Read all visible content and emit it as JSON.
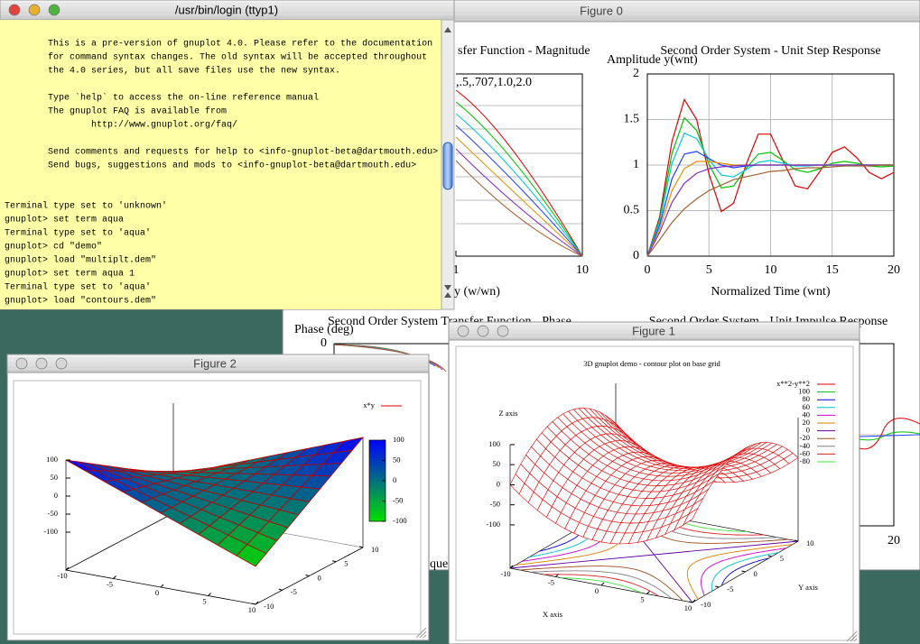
{
  "terminal": {
    "title": "/usr/bin/login  (ttyp1)",
    "lines": [
      "        This is a pre-version of gnuplot 4.0. Please refer to the documentation",
      "        for command syntax changes. The old syntax will be accepted throughout",
      "        the 4.0 series, but all save files use the new syntax.",
      "        Type `help` to access the on-line reference manual",
      "        The gnuplot FAQ is available from",
      "                http://www.gnuplot.org/faq/",
      "        Send comments and requests for help to <info-gnuplot-beta@dartmouth.edu>",
      "        Send bugs, suggestions and mods to <info-gnuplot-beta@dartmouth.edu>",
      "Terminal type set to 'unknown'",
      "gnuplot> set term aqua",
      "Terminal type set to 'aqua'",
      "gnuplot> cd \"demo\"",
      "gnuplot> load \"multiplt.dem\"",
      "gnuplot> set term aqua 1",
      "Terminal type set to 'aqua'",
      "gnuplot> load \"contours.dem\""
    ]
  },
  "figure0": {
    "title": "Figure 0",
    "magnitude": {
      "title": "sfer Function - Magnitude",
      "annotation": ",.5,.707,1.0,2.0",
      "xticks": [
        1,
        10
      ],
      "xlabel": "y (w/wn)"
    },
    "phase": {
      "title": "Second Order System Transfer Function - Phase",
      "ylabel": "Phase (deg)",
      "yticks": [
        0
      ],
      "xlabel": "quer"
    },
    "impulse": {
      "title": "Second Order System - Unit Impulse Response",
      "xticks": [
        20
      ]
    }
  },
  "chart_data": {
    "type": "line",
    "title": "Second Order System - Unit Step Response",
    "ylabel": "Amplitude y(wnt)",
    "xlabel": "Normalized Time (wnt)",
    "x": [
      0,
      1,
      2,
      3,
      4,
      5,
      6,
      7,
      8,
      9,
      10,
      11,
      12,
      13,
      14,
      15,
      16,
      17,
      18,
      19,
      20
    ],
    "series": [
      {
        "color": "#e00000",
        "values": [
          0,
          0.43,
          1.26,
          1.72,
          1.5,
          0.9,
          0.49,
          0.58,
          1,
          1.34,
          1.34,
          1.05,
          0.77,
          0.74,
          0.93,
          1.14,
          1.2,
          1.08,
          0.92,
          0.85,
          0.92
        ]
      },
      {
        "color": "#00c000",
        "values": [
          0,
          0.4,
          1.13,
          1.52,
          1.38,
          1.01,
          0.75,
          0.77,
          0.96,
          1.12,
          1.14,
          1.05,
          0.95,
          0.92,
          0.96,
          1.02,
          1.04,
          1.02,
          0.99,
          0.98,
          0.99
        ]
      },
      {
        "color": "#00c8e0",
        "values": [
          0,
          0.38,
          1.02,
          1.35,
          1.29,
          1.06,
          0.89,
          0.87,
          0.95,
          1.03,
          1.05,
          1.02,
          0.99,
          0.99,
          1,
          1,
          1,
          1,
          1,
          1,
          1
        ]
      },
      {
        "color": "#2040ff",
        "values": [
          0,
          0.34,
          0.85,
          1.12,
          1.15,
          1.07,
          1,
          0.97,
          0.99,
          1,
          1,
          1,
          1,
          1,
          1,
          1,
          1,
          1,
          1,
          1,
          1
        ]
      },
      {
        "color": "#e09000",
        "values": [
          0,
          0.3,
          0.72,
          0.96,
          1.04,
          1.04,
          1.02,
          1,
          1,
          1,
          1,
          1,
          1,
          1,
          1,
          1,
          1,
          1,
          1,
          1,
          1
        ]
      },
      {
        "color": "#8030c0",
        "values": [
          0,
          0.26,
          0.59,
          0.8,
          0.91,
          0.96,
          0.98,
          0.99,
          1,
          1,
          1,
          1,
          1,
          1,
          1,
          1,
          1,
          1,
          1,
          1,
          1
        ]
      },
      {
        "color": "#a06030",
        "values": [
          0,
          0.18,
          0.37,
          0.52,
          0.63,
          0.72,
          0.78,
          0.84,
          0.87,
          0.9,
          0.93,
          0.94,
          0.96,
          0.97,
          0.97,
          0.98,
          0.99,
          0.99,
          0.99,
          1,
          1
        ]
      }
    ],
    "xlim": [
      0,
      20
    ],
    "ylim": [
      0,
      2
    ],
    "xticks": [
      0,
      5,
      10,
      15,
      20
    ],
    "yticks": [
      0,
      0.5,
      1,
      1.5,
      2
    ],
    "grid": true
  },
  "figure2": {
    "title": "Figure 2",
    "key": "x*y",
    "key_color": "#e00000",
    "zticks": [
      100,
      50,
      0,
      -50,
      -100
    ],
    "xticks": [
      -10,
      -5,
      0,
      5,
      10
    ],
    "yticks": [
      -10,
      -5,
      0,
      5,
      10
    ],
    "cbticks": [
      100,
      50,
      0,
      -50,
      -100
    ]
  },
  "figure1": {
    "title": "Figure 1",
    "plot_title": "3D gnuplot demo - contour plot on base grid",
    "key": "x**2-y**2",
    "key_color": "#e00000",
    "contours": [
      {
        "level": 100,
        "color": "#00c000"
      },
      {
        "level": 80,
        "color": "#0000e0"
      },
      {
        "level": 60,
        "color": "#00c0d0"
      },
      {
        "level": 40,
        "color": "#d000d0"
      },
      {
        "level": 20,
        "color": "#e08000"
      },
      {
        "level": 0,
        "color": "#6000a0"
      },
      {
        "level": -20,
        "color": "#a05020"
      },
      {
        "level": -40,
        "color": "#808080"
      },
      {
        "level": -60,
        "color": "#e02020"
      },
      {
        "level": -80,
        "color": "#40e040"
      }
    ],
    "zlabel": "Z axis",
    "xlabel": "X axis",
    "ylabel": "Y axis",
    "zticks": [
      100,
      50,
      0,
      -50,
      -100
    ],
    "xticks": [
      -10,
      -5,
      0,
      5,
      10
    ],
    "yticks": [
      -10,
      -5,
      0,
      5,
      10
    ]
  }
}
